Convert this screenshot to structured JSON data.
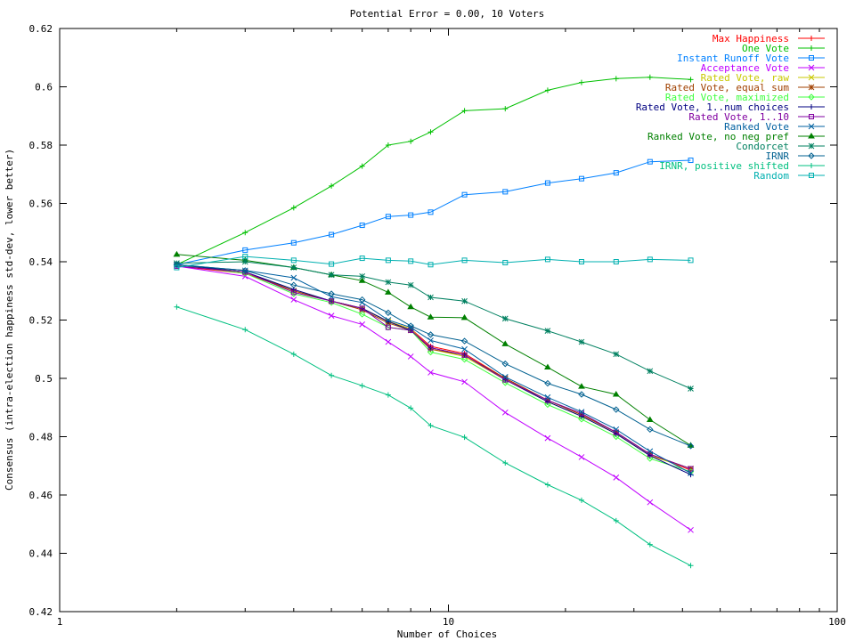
{
  "chart_data": {
    "type": "line",
    "title": "Potential Error = 0.00, 10 Voters",
    "xlabel": "Number of Choices",
    "ylabel": "Consensus (intra-election happiness std-dev, lower better)",
    "x_scale": "log",
    "xlim": [
      1,
      100
    ],
    "ylim": [
      0.42,
      0.62
    ],
    "x_ticks": [
      "1",
      "10",
      "100"
    ],
    "y_ticks": [
      "0.42",
      "0.44",
      "0.46",
      "0.48",
      "0.5",
      "0.52",
      "0.54",
      "0.56",
      "0.58",
      "0.6",
      "0.62"
    ],
    "legend_position": "top-right",
    "grid": false,
    "x": [
      2,
      3,
      4,
      5,
      6,
      7,
      8,
      9,
      11,
      14,
      18,
      22,
      27,
      33,
      42
    ],
    "series": [
      {
        "name": "Max Happiness",
        "color": "#ff0000",
        "marker": "plus",
        "values": [
          0.5385,
          0.536,
          0.53,
          0.5265,
          0.524,
          0.5195,
          0.517,
          0.511,
          0.5085,
          0.5,
          0.4925,
          0.4875,
          0.4815,
          0.474,
          0.4685
        ]
      },
      {
        "name": "One Vote",
        "color": "#00c000",
        "marker": "plus",
        "values": [
          0.539,
          0.55,
          0.5585,
          0.566,
          0.5728,
          0.58,
          0.5813,
          0.5845,
          0.5918,
          0.5925,
          0.5988,
          0.6015,
          0.6028,
          0.6033,
          0.6025
        ]
      },
      {
        "name": "Instant Runoff Vote",
        "color": "#0080ff",
        "marker": "square",
        "values": [
          0.539,
          0.544,
          0.5465,
          0.5493,
          0.5525,
          0.5555,
          0.556,
          0.557,
          0.563,
          0.564,
          0.567,
          0.5685,
          0.5705,
          0.5743,
          0.5748
        ]
      },
      {
        "name": "Acceptance Vote",
        "color": "#c000ff",
        "marker": "x",
        "values": [
          0.5385,
          0.535,
          0.527,
          0.5215,
          0.5185,
          0.5125,
          0.5075,
          0.502,
          0.4988,
          0.4883,
          0.4795,
          0.473,
          0.466,
          0.4575,
          0.448
        ]
      },
      {
        "name": "Rated Vote, raw",
        "color": "#c8c800",
        "marker": "x",
        "values": [
          0.539,
          0.5365,
          0.53,
          0.5265,
          0.524,
          0.5195,
          0.517,
          0.51,
          0.5075,
          0.4995,
          0.492,
          0.487,
          0.481,
          0.4735,
          0.469
        ]
      },
      {
        "name": "Rated Vote, equal sum",
        "color": "#a04000",
        "marker": "star",
        "values": [
          0.539,
          0.5365,
          0.53,
          0.5265,
          0.5235,
          0.519,
          0.5165,
          0.51,
          0.508,
          0.5,
          0.4925,
          0.4875,
          0.4815,
          0.474,
          0.469
        ]
      },
      {
        "name": "Rated Vote, maximized",
        "color": "#40ff40",
        "marker": "diamond",
        "values": [
          0.539,
          0.536,
          0.529,
          0.526,
          0.522,
          0.5175,
          0.5165,
          0.509,
          0.5065,
          0.4985,
          0.491,
          0.486,
          0.48,
          0.4725,
          0.468
        ]
      },
      {
        "name": "Rated Vote, 1..num choices",
        "color": "#000080",
        "marker": "plus",
        "values": [
          0.539,
          0.5365,
          0.5305,
          0.5265,
          0.524,
          0.5195,
          0.5165,
          0.5105,
          0.508,
          0.4995,
          0.492,
          0.487,
          0.481,
          0.4735,
          0.467
        ]
      },
      {
        "name": "Rated Vote, 1..10",
        "color": "#8000a0",
        "marker": "square",
        "values": [
          0.5385,
          0.5365,
          0.5295,
          0.5265,
          0.524,
          0.5175,
          0.5165,
          0.5105,
          0.508,
          0.4995,
          0.4925,
          0.488,
          0.4815,
          0.474,
          0.469
        ]
      },
      {
        "name": "Ranked Vote",
        "color": "#0060a0",
        "marker": "x",
        "values": [
          0.539,
          0.537,
          0.5345,
          0.528,
          0.526,
          0.52,
          0.5175,
          0.513,
          0.51,
          0.5005,
          0.4935,
          0.4885,
          0.4825,
          0.475,
          0.4675
        ]
      },
      {
        "name": "Ranked Vote, no neg pref",
        "color": "#008000",
        "marker": "triangle",
        "values": [
          0.5425,
          0.5405,
          0.538,
          0.5355,
          0.5335,
          0.5295,
          0.5245,
          0.521,
          0.5208,
          0.5118,
          0.5038,
          0.4972,
          0.4945,
          0.4858,
          0.477
        ]
      },
      {
        "name": "Condorcet",
        "color": "#008060",
        "marker": "star",
        "values": [
          0.5395,
          0.54,
          0.538,
          0.5355,
          0.535,
          0.533,
          0.532,
          0.5278,
          0.5265,
          0.5205,
          0.5163,
          0.5125,
          0.5083,
          0.5025,
          0.4965
        ]
      },
      {
        "name": "IRNR",
        "color": "#006090",
        "marker": "diamond",
        "values": [
          0.539,
          0.537,
          0.532,
          0.529,
          0.527,
          0.5225,
          0.518,
          0.515,
          0.5128,
          0.505,
          0.4983,
          0.4945,
          0.4893,
          0.4825,
          0.4768
        ]
      },
      {
        "name": "IRNR, positive shifted",
        "color": "#00c080",
        "marker": "plus",
        "values": [
          0.5245,
          0.5167,
          0.5083,
          0.501,
          0.4975,
          0.4943,
          0.4898,
          0.4838,
          0.4798,
          0.471,
          0.4635,
          0.4582,
          0.4512,
          0.443,
          0.4358
        ]
      },
      {
        "name": "Random",
        "color": "#00b0b0",
        "marker": "square",
        "values": [
          0.538,
          0.5418,
          0.5405,
          0.5392,
          0.5412,
          0.5405,
          0.5402,
          0.539,
          0.5405,
          0.5397,
          0.5408,
          0.54,
          0.54,
          0.5408,
          0.5405
        ]
      }
    ]
  }
}
